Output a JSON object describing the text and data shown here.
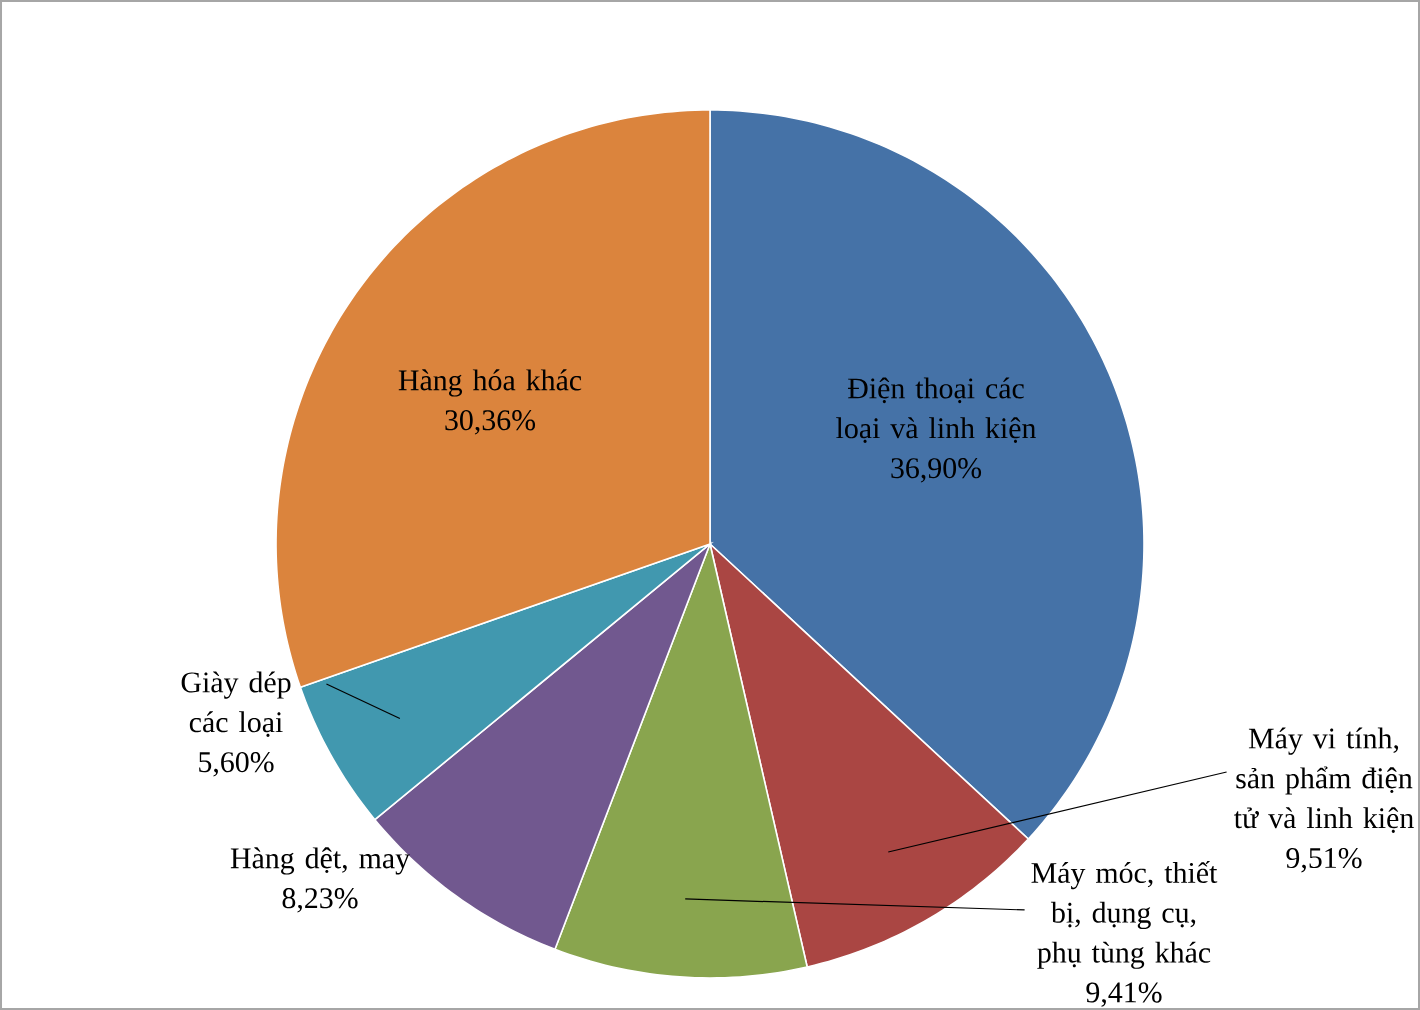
{
  "chart_data": {
    "type": "pie",
    "categories": [
      "Điện thoại các loại và linh kiện",
      "Máy vi tính, sản phẩm điện tử và linh kiện",
      "Máy móc, thiết bị, dụng cụ, phụ tùng khác",
      "Hàng dệt, may",
      "Giày dép các loại",
      "Hàng hóa khác"
    ],
    "values": [
      36.9,
      9.51,
      9.41,
      8.23,
      5.6,
      30.36
    ],
    "value_labels": [
      "36,90%",
      "9,51%",
      "9,41%",
      "8,23%",
      "5,60%",
      "30,36%"
    ],
    "colors": [
      "#4572a7",
      "#aa4643",
      "#89a54e",
      "#71588f",
      "#4198af",
      "#db843d"
    ]
  }
}
